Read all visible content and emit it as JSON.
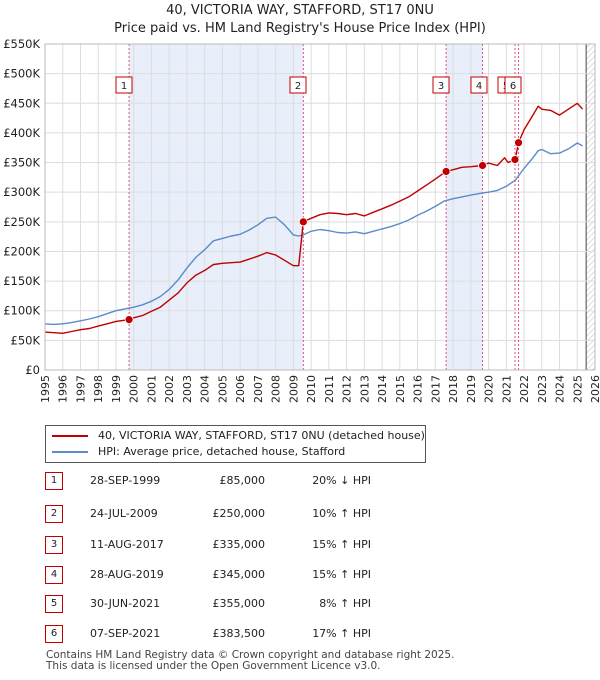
{
  "title_line1": "40, VICTORIA WAY, STAFFORD, ST17 0NU",
  "title_line2": "Price paid vs. HM Land Registry's House Price Index (HPI)",
  "colors": {
    "property": "#c00000",
    "hpi": "#5b8bc9",
    "shade": "#e8eefa",
    "marker_line": "#e05080"
  },
  "chart_data": {
    "type": "line",
    "title": "Price paid vs. HM Land Registry's House Price Index (HPI)",
    "xlim": [
      1995,
      2026
    ],
    "ylim": [
      0,
      550000
    ],
    "x_ticks": [
      1995,
      1996,
      1997,
      1998,
      1999,
      2000,
      2001,
      2002,
      2003,
      2004,
      2005,
      2006,
      2007,
      2008,
      2009,
      2010,
      2011,
      2012,
      2013,
      2014,
      2015,
      2016,
      2017,
      2018,
      2019,
      2020,
      2021,
      2022,
      2023,
      2024,
      2025,
      2026
    ],
    "y_ticks": [
      0,
      50000,
      100000,
      150000,
      200000,
      250000,
      300000,
      350000,
      400000,
      450000,
      500000,
      550000
    ],
    "y_tick_labels": [
      "£0",
      "£50K",
      "£100K",
      "£150K",
      "£200K",
      "£250K",
      "£300K",
      "£350K",
      "£400K",
      "£450K",
      "£500K",
      "£550K"
    ],
    "shaded_ranges": [
      [
        1999.74,
        2009.56
      ],
      [
        2017.61,
        2019.66
      ]
    ],
    "future_hatch_from": 2025.5,
    "series": [
      {
        "name": "40, VICTORIA WAY, STAFFORD, ST17 0NU (detached house)",
        "points": [
          [
            1995,
            64000
          ],
          [
            1995.5,
            63000
          ],
          [
            1996,
            62000
          ],
          [
            1996.5,
            65000
          ],
          [
            1997,
            68000
          ],
          [
            1997.5,
            70000
          ],
          [
            1998,
            74000
          ],
          [
            1998.5,
            78000
          ],
          [
            1999,
            82000
          ],
          [
            1999.74,
            85000
          ],
          [
            2000,
            88000
          ],
          [
            2000.5,
            92000
          ],
          [
            2001,
            99000
          ],
          [
            2001.5,
            106000
          ],
          [
            2002,
            118000
          ],
          [
            2002.5,
            130000
          ],
          [
            2003,
            147000
          ],
          [
            2003.5,
            160000
          ],
          [
            2004,
            168000
          ],
          [
            2004.5,
            178000
          ],
          [
            2005,
            180000
          ],
          [
            2005.5,
            181000
          ],
          [
            2006,
            182000
          ],
          [
            2006.5,
            187000
          ],
          [
            2007,
            192000
          ],
          [
            2007.5,
            198000
          ],
          [
            2008,
            194000
          ],
          [
            2008.5,
            185000
          ],
          [
            2009,
            176000
          ],
          [
            2009.3,
            176000
          ],
          [
            2009.56,
            250000
          ],
          [
            2010,
            256000
          ],
          [
            2010.5,
            262000
          ],
          [
            2011,
            265000
          ],
          [
            2011.5,
            264000
          ],
          [
            2012,
            262000
          ],
          [
            2012.5,
            264000
          ],
          [
            2013,
            260000
          ],
          [
            2013.5,
            266000
          ],
          [
            2014,
            272000
          ],
          [
            2014.5,
            278000
          ],
          [
            2015,
            285000
          ],
          [
            2015.5,
            292000
          ],
          [
            2016,
            302000
          ],
          [
            2016.5,
            312000
          ],
          [
            2017,
            322000
          ],
          [
            2017.61,
            335000
          ],
          [
            2018,
            338000
          ],
          [
            2018.5,
            342000
          ],
          [
            2019,
            343000
          ],
          [
            2019.66,
            345000
          ],
          [
            2020,
            349000
          ],
          [
            2020.5,
            345000
          ],
          [
            2020.9,
            358000
          ],
          [
            2021.1,
            350000
          ],
          [
            2021.5,
            355000
          ],
          [
            2021.69,
            383500
          ],
          [
            2022,
            405000
          ],
          [
            2022.5,
            430000
          ],
          [
            2022.8,
            445000
          ],
          [
            2023,
            440000
          ],
          [
            2023.5,
            438000
          ],
          [
            2024,
            430000
          ],
          [
            2024.5,
            440000
          ],
          [
            2025,
            450000
          ],
          [
            2025.3,
            440000
          ]
        ]
      },
      {
        "name": "HPI: Average price, detached house, Stafford",
        "points": [
          [
            1995,
            78000
          ],
          [
            1995.5,
            77000
          ],
          [
            1996,
            78000
          ],
          [
            1996.5,
            80000
          ],
          [
            1997,
            83000
          ],
          [
            1997.5,
            86000
          ],
          [
            1998,
            90000
          ],
          [
            1998.5,
            95000
          ],
          [
            1999,
            100000
          ],
          [
            1999.5,
            103000
          ],
          [
            2000,
            106000
          ],
          [
            2000.5,
            110000
          ],
          [
            2001,
            116000
          ],
          [
            2001.5,
            124000
          ],
          [
            2002,
            136000
          ],
          [
            2002.5,
            152000
          ],
          [
            2003,
            172000
          ],
          [
            2003.5,
            190000
          ],
          [
            2004,
            203000
          ],
          [
            2004.5,
            218000
          ],
          [
            2005,
            222000
          ],
          [
            2005.5,
            226000
          ],
          [
            2006,
            229000
          ],
          [
            2006.5,
            236000
          ],
          [
            2007,
            245000
          ],
          [
            2007.5,
            256000
          ],
          [
            2008,
            258000
          ],
          [
            2008.5,
            245000
          ],
          [
            2009,
            228000
          ],
          [
            2009.3,
            226000
          ],
          [
            2009.56,
            228000
          ],
          [
            2010,
            234000
          ],
          [
            2010.5,
            237000
          ],
          [
            2011,
            235000
          ],
          [
            2011.5,
            232000
          ],
          [
            2012,
            231000
          ],
          [
            2012.5,
            233000
          ],
          [
            2013,
            230000
          ],
          [
            2013.5,
            234000
          ],
          [
            2014,
            238000
          ],
          [
            2014.5,
            242000
          ],
          [
            2015,
            247000
          ],
          [
            2015.5,
            253000
          ],
          [
            2016,
            261000
          ],
          [
            2016.5,
            268000
          ],
          [
            2017,
            276000
          ],
          [
            2017.5,
            285000
          ],
          [
            2018,
            289000
          ],
          [
            2018.5,
            292000
          ],
          [
            2019,
            295000
          ],
          [
            2019.5,
            298000
          ],
          [
            2020,
            300000
          ],
          [
            2020.5,
            303000
          ],
          [
            2021,
            310000
          ],
          [
            2021.5,
            320000
          ],
          [
            2022,
            340000
          ],
          [
            2022.5,
            358000
          ],
          [
            2022.8,
            370000
          ],
          [
            2023,
            372000
          ],
          [
            2023.5,
            365000
          ],
          [
            2024,
            366000
          ],
          [
            2024.5,
            373000
          ],
          [
            2025,
            383000
          ],
          [
            2025.3,
            378000
          ]
        ]
      }
    ],
    "sales": [
      {
        "label": "1",
        "x": 1999.74,
        "y": 85000,
        "date": "28-SEP-1999",
        "price": "£85,000",
        "hpi": "20% ↓ HPI"
      },
      {
        "label": "2",
        "x": 2009.56,
        "y": 250000,
        "date": "24-JUL-2009",
        "price": "£250,000",
        "hpi": "10% ↑ HPI"
      },
      {
        "label": "3",
        "x": 2017.61,
        "y": 335000,
        "date": "11-AUG-2017",
        "price": "£335,000",
        "hpi": "15% ↑ HPI"
      },
      {
        "label": "4",
        "x": 2019.66,
        "y": 345000,
        "date": "28-AUG-2019",
        "price": "£345,000",
        "hpi": "15% ↑ HPI"
      },
      {
        "label": "5",
        "x": 2021.49,
        "y": 355000,
        "date": "30-JUN-2021",
        "price": "£355,000",
        "hpi": "8% ↑ HPI"
      },
      {
        "label": "6",
        "x": 2021.69,
        "y": 383500,
        "date": "07-SEP-2021",
        "price": "£383,500",
        "hpi": "17% ↑ HPI"
      }
    ]
  },
  "legend": {
    "property_label": "40, VICTORIA WAY, STAFFORD, ST17 0NU (detached house)",
    "hpi_label": "HPI: Average price, detached house, Stafford"
  },
  "footer": {
    "line1": "Contains HM Land Registry data © Crown copyright and database right 2025.",
    "line2": "This data is licensed under the Open Government Licence v3.0."
  }
}
